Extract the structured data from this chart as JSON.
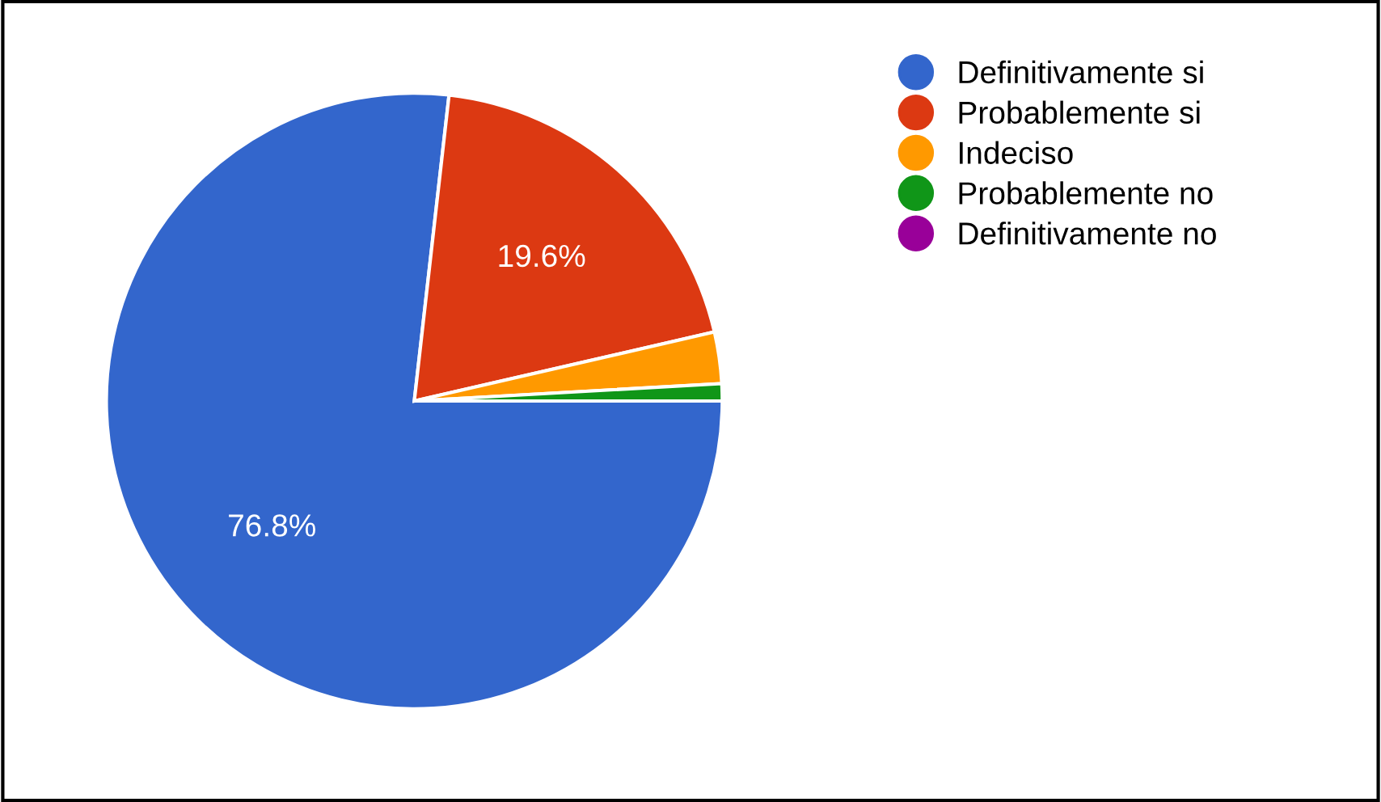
{
  "chart_data": {
    "type": "pie",
    "categories": [
      "Definitivamente si",
      "Probablemente si",
      "Indeciso",
      "Probablemente no",
      "Definitivamente no"
    ],
    "values": [
      76.8,
      19.6,
      2.7,
      0.9,
      0
    ],
    "colors": [
      "#3366cc",
      "#dc3912",
      "#ff9900",
      "#109618",
      "#990099"
    ],
    "value_labels": [
      "76.8%",
      "19.6%",
      null,
      null,
      null
    ],
    "legend": "right"
  }
}
